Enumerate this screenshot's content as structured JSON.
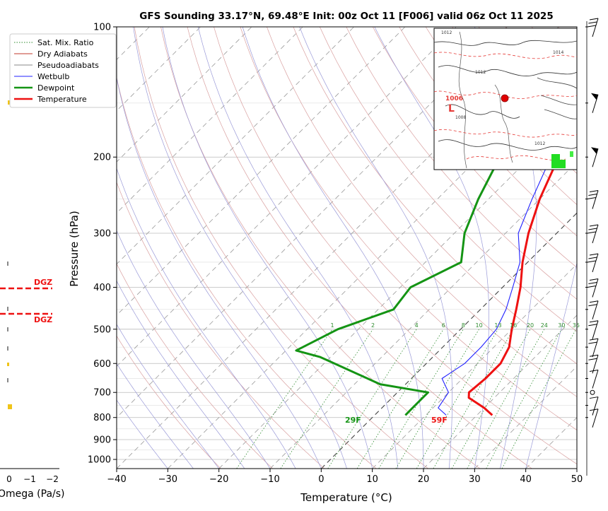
{
  "chart_data": {
    "type": "line",
    "title": "GFS Sounding 33.17°N, 69.48°E Init: 00z Oct 11 [F006] valid 06z Oct 11 2025",
    "xlabel": "Temperature (°C)",
    "ylabel": "Pressure (hPa)",
    "xlim": [
      -40,
      50
    ],
    "ylim": [
      1050,
      100
    ],
    "y_scale": "log",
    "x_ticks": [
      -40,
      -30,
      -20,
      -10,
      0,
      10,
      20,
      30,
      40,
      50
    ],
    "y_ticks": [
      100,
      200,
      300,
      400,
      500,
      600,
      700,
      800,
      900,
      1000
    ],
    "grid": true,
    "legend": {
      "placement": "top-left",
      "entries": [
        {
          "name": "Sat. Mix. Ratio",
          "color": "#2e8b2e",
          "style": "dotted"
        },
        {
          "name": "Dry Adiabats",
          "color": "#c0392b",
          "style": "solid"
        },
        {
          "name": "Pseudoadiabats",
          "color": "#888888",
          "style": "solid"
        },
        {
          "name": "Wetbulb",
          "color": "#2020ff",
          "style": "solid"
        },
        {
          "name": "Dewpoint",
          "color": "#149414",
          "style": "solid"
        },
        {
          "name": "Temperature",
          "color": "#ee1111",
          "style": "solid"
        }
      ]
    },
    "series": [
      {
        "name": "Temperature",
        "color": "#ee1111",
        "points": [
          [
            23,
            790
          ],
          [
            20,
            760
          ],
          [
            15,
            720
          ],
          [
            14,
            700
          ],
          [
            14.5,
            650
          ],
          [
            14.5,
            600
          ],
          [
            13,
            550
          ],
          [
            10,
            500
          ],
          [
            7,
            450
          ],
          [
            3.5,
            400
          ],
          [
            -1,
            350
          ],
          [
            -5.5,
            300
          ],
          [
            -10,
            250
          ],
          [
            -14.5,
            200
          ],
          [
            -22,
            150
          ],
          [
            -24.5,
            130
          ],
          [
            -27,
            100
          ]
        ]
      },
      {
        "name": "Dewpoint",
        "color": "#149414",
        "points": [
          [
            6,
            790
          ],
          [
            6,
            760
          ],
          [
            6,
            700
          ],
          [
            -5,
            670
          ],
          [
            -22,
            580
          ],
          [
            -28,
            560
          ],
          [
            -24,
            500
          ],
          [
            -17,
            450
          ],
          [
            -18,
            400
          ],
          [
            -13,
            350
          ],
          [
            -18,
            300
          ],
          [
            -22,
            250
          ],
          [
            -26,
            200
          ],
          [
            -23,
            150
          ],
          [
            -22.5,
            130
          ],
          [
            -20,
            100
          ]
        ]
      },
      {
        "name": "Wetbulb",
        "color": "#2020ff",
        "points": [
          [
            14,
            790
          ],
          [
            11,
            760
          ],
          [
            10,
            700
          ],
          [
            6,
            650
          ],
          [
            7.5,
            600
          ],
          [
            7.5,
            550
          ],
          [
            7,
            500
          ],
          [
            5,
            450
          ],
          [
            2,
            400
          ],
          [
            -1.5,
            350
          ],
          [
            -7.5,
            300
          ],
          [
            -11.5,
            250
          ],
          [
            -16,
            200
          ],
          [
            -22,
            150
          ],
          [
            -24.5,
            130
          ],
          [
            -27,
            100
          ]
        ]
      }
    ],
    "annotations": {
      "surface_temp_label": "59F",
      "surface_dew_label": "29F",
      "mixing_ratio_labels": [
        "1",
        "2",
        "4",
        "6",
        "8",
        "10",
        "13",
        "16",
        "20",
        "24",
        "30",
        "36"
      ]
    },
    "omega_panel": {
      "xlabel": "Omega (Pa/s)",
      "x_ticks": [
        "0",
        "−1",
        "−2"
      ],
      "dgz_label": "DGZ",
      "dgz_top_hpa": 400,
      "dgz_bottom_hpa": 460
    },
    "inset_map": {
      "low_label": "L",
      "low_pressure": "1006",
      "isobar_labels": [
        "1012",
        "1014",
        "1012",
        "1008",
        "1012"
      ]
    },
    "wind_barbs_pressures": [
      100,
      150,
      200,
      250,
      300,
      350,
      400,
      450,
      500,
      550,
      600,
      650,
      700,
      750,
      800
    ]
  }
}
